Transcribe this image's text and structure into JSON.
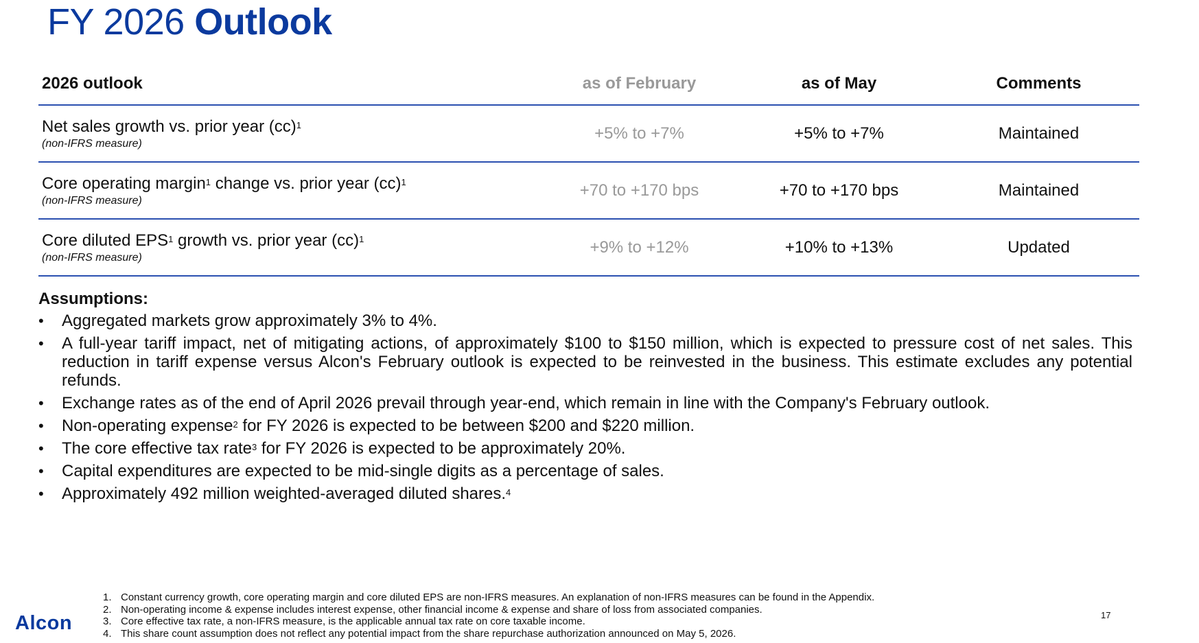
{
  "title": {
    "regular": "FY 2026",
    "bold": "Outlook"
  },
  "table": {
    "headers": [
      "2026 outlook",
      "as of February",
      "as of May",
      "Comments"
    ],
    "rows": [
      {
        "metric_parts": [
          "Net sales growth vs. prior year (cc)"
        ],
        "metric_sups": [
          "1"
        ],
        "sub": "(non-IFRS measure)",
        "feb": "+5% to +7%",
        "may": "+5% to +7%",
        "comment": "Maintained"
      },
      {
        "metric_parts": [
          "Core operating margin",
          " change vs. prior year (cc)"
        ],
        "metric_sups": [
          "1",
          "1"
        ],
        "sub": "(non-IFRS measure)",
        "feb": "+70 to +170 bps",
        "may": "+70 to +170 bps",
        "comment": "Maintained"
      },
      {
        "metric_parts": [
          "Core diluted EPS",
          " growth vs. prior year (cc)"
        ],
        "metric_sups": [
          "1",
          "1"
        ],
        "sub": "(non-IFRS measure)",
        "feb": "+9% to +12%",
        "may": "+10% to +13%",
        "comment": "Updated"
      }
    ]
  },
  "assumptions": {
    "title": "Assumptions:",
    "items": [
      {
        "text": "Aggregated markets grow approximately 3% to 4%."
      },
      {
        "text": "A full-year tariff impact, net of mitigating actions, of approximately $100 to $150 million, which is expected to pressure cost of net sales. This reduction in tariff expense versus Alcon's February outlook is expected to be reinvested in the business. This estimate excludes any potential refunds."
      },
      {
        "text": "Exchange rates as of the end of April 2026 prevail through year-end, which remain in line with the Company's February outlook."
      },
      {
        "pre": "Non-operating expense",
        "sup": "2",
        "post": " for FY 2026 is expected to be between $200 and $220 million."
      },
      {
        "pre": "The core effective tax rate",
        "sup": "3",
        "post": " for FY 2026 is expected to be approximately 20%."
      },
      {
        "text": "Capital expenditures are expected to be mid-single digits as a percentage of sales."
      },
      {
        "pre": "Approximately 492 million weighted-averaged diluted shares.",
        "sup": "4",
        "post": ""
      }
    ]
  },
  "footnotes": [
    {
      "num": "1.",
      "text": "Constant currency growth, core operating margin and core diluted EPS are non-IFRS measures. An explanation of non-IFRS measures can be found in the Appendix."
    },
    {
      "num": "2.",
      "text": "Non-operating income & expense includes interest expense, other financial income & expense and share of loss from associated companies."
    },
    {
      "num": "3.",
      "text": "Core effective tax rate, a non-IFRS measure, is the applicable annual tax rate on core taxable income."
    },
    {
      "num": "4.",
      "text": "This share count assumption does not reflect any potential impact from the share repurchase authorization announced on May 5, 2026."
    }
  ],
  "logo": "Alcon",
  "page_number": "17"
}
